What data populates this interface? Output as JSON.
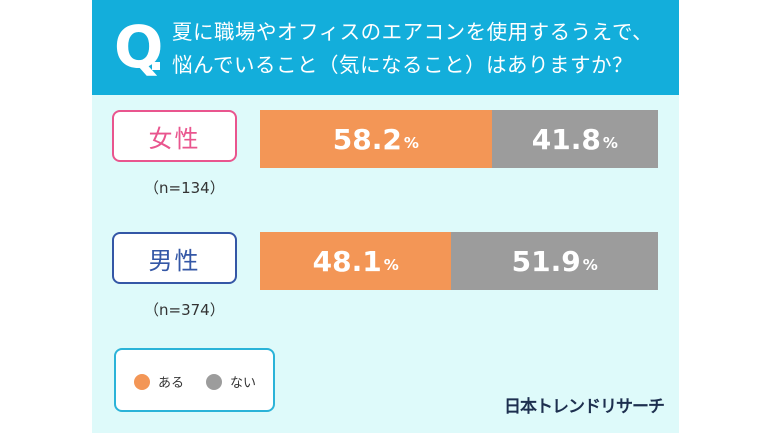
{
  "header": {
    "q_mark": "Q",
    "question_line1": "夏に職場やオフィスのエアコンを使用するうえで、",
    "question_line2": "悩んでいること（気になること）はありますか？"
  },
  "chart_data": {
    "type": "bar",
    "orientation": "horizontal-stacked-100",
    "title": "夏に職場やオフィスのエアコンを使用するうえで、悩んでいること（気になること）はありますか？",
    "categories": [
      "女性",
      "男性"
    ],
    "sample_sizes": [
      "（n=134）",
      "（n=374）"
    ],
    "series": [
      {
        "name": "ある",
        "color": "#f39656",
        "values": [
          58.2,
          48.1
        ]
      },
      {
        "name": "ない",
        "color": "#9c9c9c",
        "values": [
          41.8,
          51.9
        ]
      }
    ],
    "unit": "%",
    "legend": "bottom-left",
    "label_colors": [
      "#e9558e",
      "#3457a6"
    ]
  },
  "logo": "日本トレンドリサーチ"
}
